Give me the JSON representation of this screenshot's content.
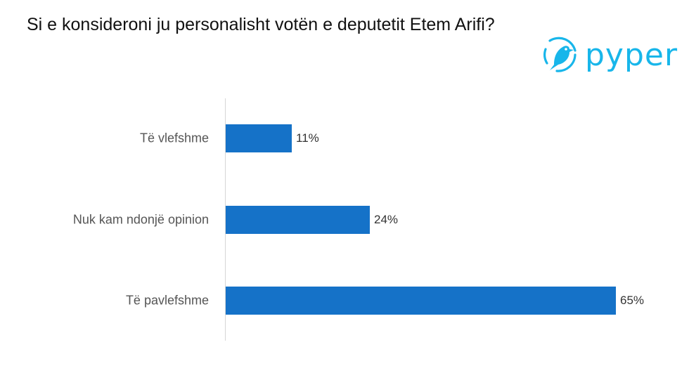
{
  "title": "Si e konsideroni ju personalisht votën e deputetit Etem Arifi?",
  "logo": {
    "text": "pyper",
    "icon": "bird-icon",
    "color": "#18b6ea"
  },
  "chart_data": {
    "type": "bar",
    "orientation": "horizontal",
    "categories": [
      "Të vlefshme",
      "Nuk kam ndonjë opinion",
      "Të pavlefshme"
    ],
    "values": [
      11,
      24,
      65
    ],
    "value_labels": [
      "11%",
      "24%",
      "65%"
    ],
    "unit": "%",
    "xlim": [
      0,
      65
    ],
    "bar_color": "#1572c8",
    "title": "Si e konsideroni ju personalisht votën e deputetit Etem Arifi?",
    "xlabel": "",
    "ylabel": "",
    "grid": false,
    "legend": "none"
  }
}
